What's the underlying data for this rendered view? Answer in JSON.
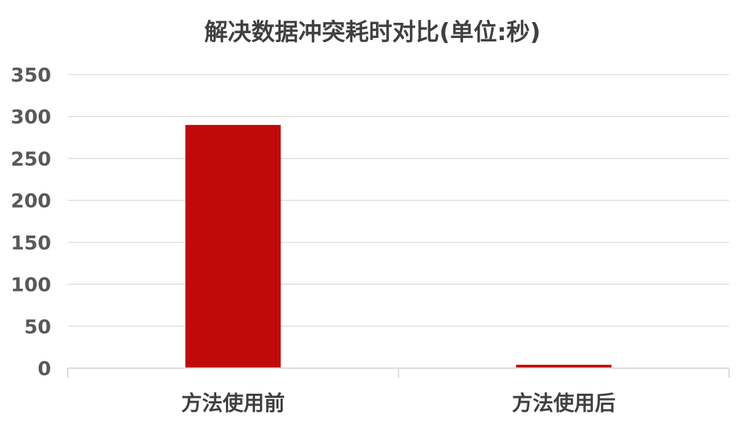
{
  "chart_data": {
    "type": "bar",
    "title": "解决数据冲突耗时对比(单位:秒)",
    "categories": [
      "方法使用前",
      "方法使用后"
    ],
    "values": [
      290,
      4
    ],
    "ylim": [
      0,
      350
    ],
    "yticks": [
      0,
      50,
      100,
      150,
      200,
      250,
      300,
      350
    ],
    "grid": true,
    "bar_color": "#C00A0A"
  }
}
